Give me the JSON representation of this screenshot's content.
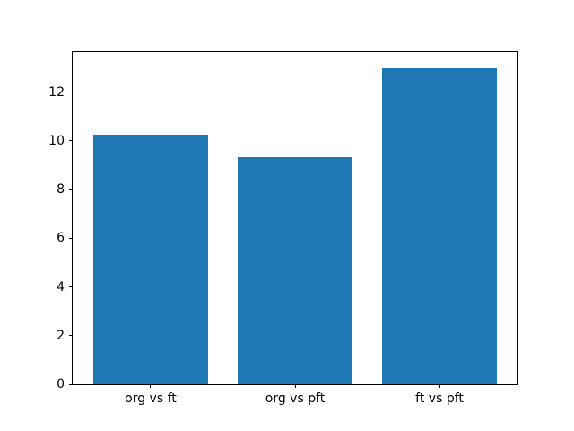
{
  "chart_data": {
    "type": "bar",
    "categories": [
      "org vs ft",
      "org vs pft",
      "ft vs pft"
    ],
    "values": [
      10.27,
      9.35,
      13.0
    ],
    "title": "",
    "xlabel": "",
    "ylabel": "",
    "ylim": [
      0,
      13.65
    ],
    "yticks": [
      0,
      2,
      4,
      6,
      8,
      10,
      12
    ],
    "bar_width_fraction": 0.8,
    "xlim": [
      -0.54,
      2.54
    ],
    "bar_color": "#1f77b4",
    "axes_background": "#ffffff",
    "figure_background": "#ffffff",
    "spine_color": "#000000",
    "tick_color": "#000000",
    "grid": false,
    "legend": null
  }
}
